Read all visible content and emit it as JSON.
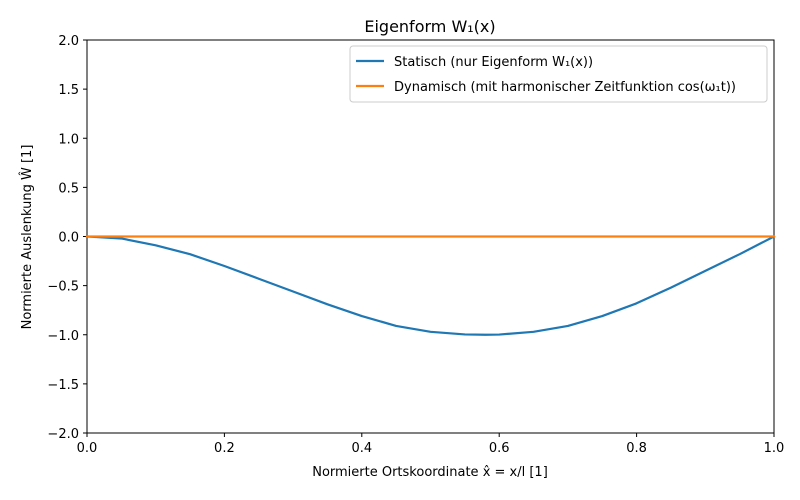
{
  "chart_data": {
    "type": "line",
    "title": "Eigenform W₁(x)",
    "xlabel": "Normierte Ortskoordinate x̂ = x/l  [1]",
    "ylabel": "Normierte Auslenkung Ŵ [1]",
    "xlim": [
      0.0,
      1.0
    ],
    "ylim": [
      -2.0,
      2.0
    ],
    "xticks": [
      "0.0",
      "0.2",
      "0.4",
      "0.6",
      "0.8",
      "1.0"
    ],
    "yticks": [
      "−2.0",
      "−1.5",
      "−1.0",
      "−0.5",
      "0.0",
      "0.5",
      "1.0",
      "1.5",
      "2.0"
    ],
    "grid": false,
    "legend_position": "top-right",
    "series": [
      {
        "name": "Statisch (nur Eigenform W₁(x))",
        "color": "#1f77b4",
        "x": [
          0.0,
          0.05,
          0.1,
          0.15,
          0.2,
          0.25,
          0.3,
          0.35,
          0.4,
          0.45,
          0.5,
          0.55,
          0.58,
          0.6,
          0.65,
          0.7,
          0.75,
          0.8,
          0.85,
          0.9,
          0.95,
          1.0
        ],
        "y": [
          0.0,
          -0.02,
          -0.09,
          -0.18,
          -0.3,
          -0.43,
          -0.56,
          -0.69,
          -0.81,
          -0.91,
          -0.97,
          -0.997,
          -1.0,
          -0.998,
          -0.97,
          -0.91,
          -0.81,
          -0.68,
          -0.52,
          -0.35,
          -0.18,
          0.0
        ]
      },
      {
        "name": "Dynamisch (mit harmonischer Zeitfunktion cos(ω₁t))",
        "color": "#ff7f0e",
        "x": [
          0.0,
          0.25,
          0.5,
          0.75,
          1.0
        ],
        "y": [
          0.0,
          0.0,
          0.0,
          0.0,
          0.0
        ]
      }
    ]
  }
}
